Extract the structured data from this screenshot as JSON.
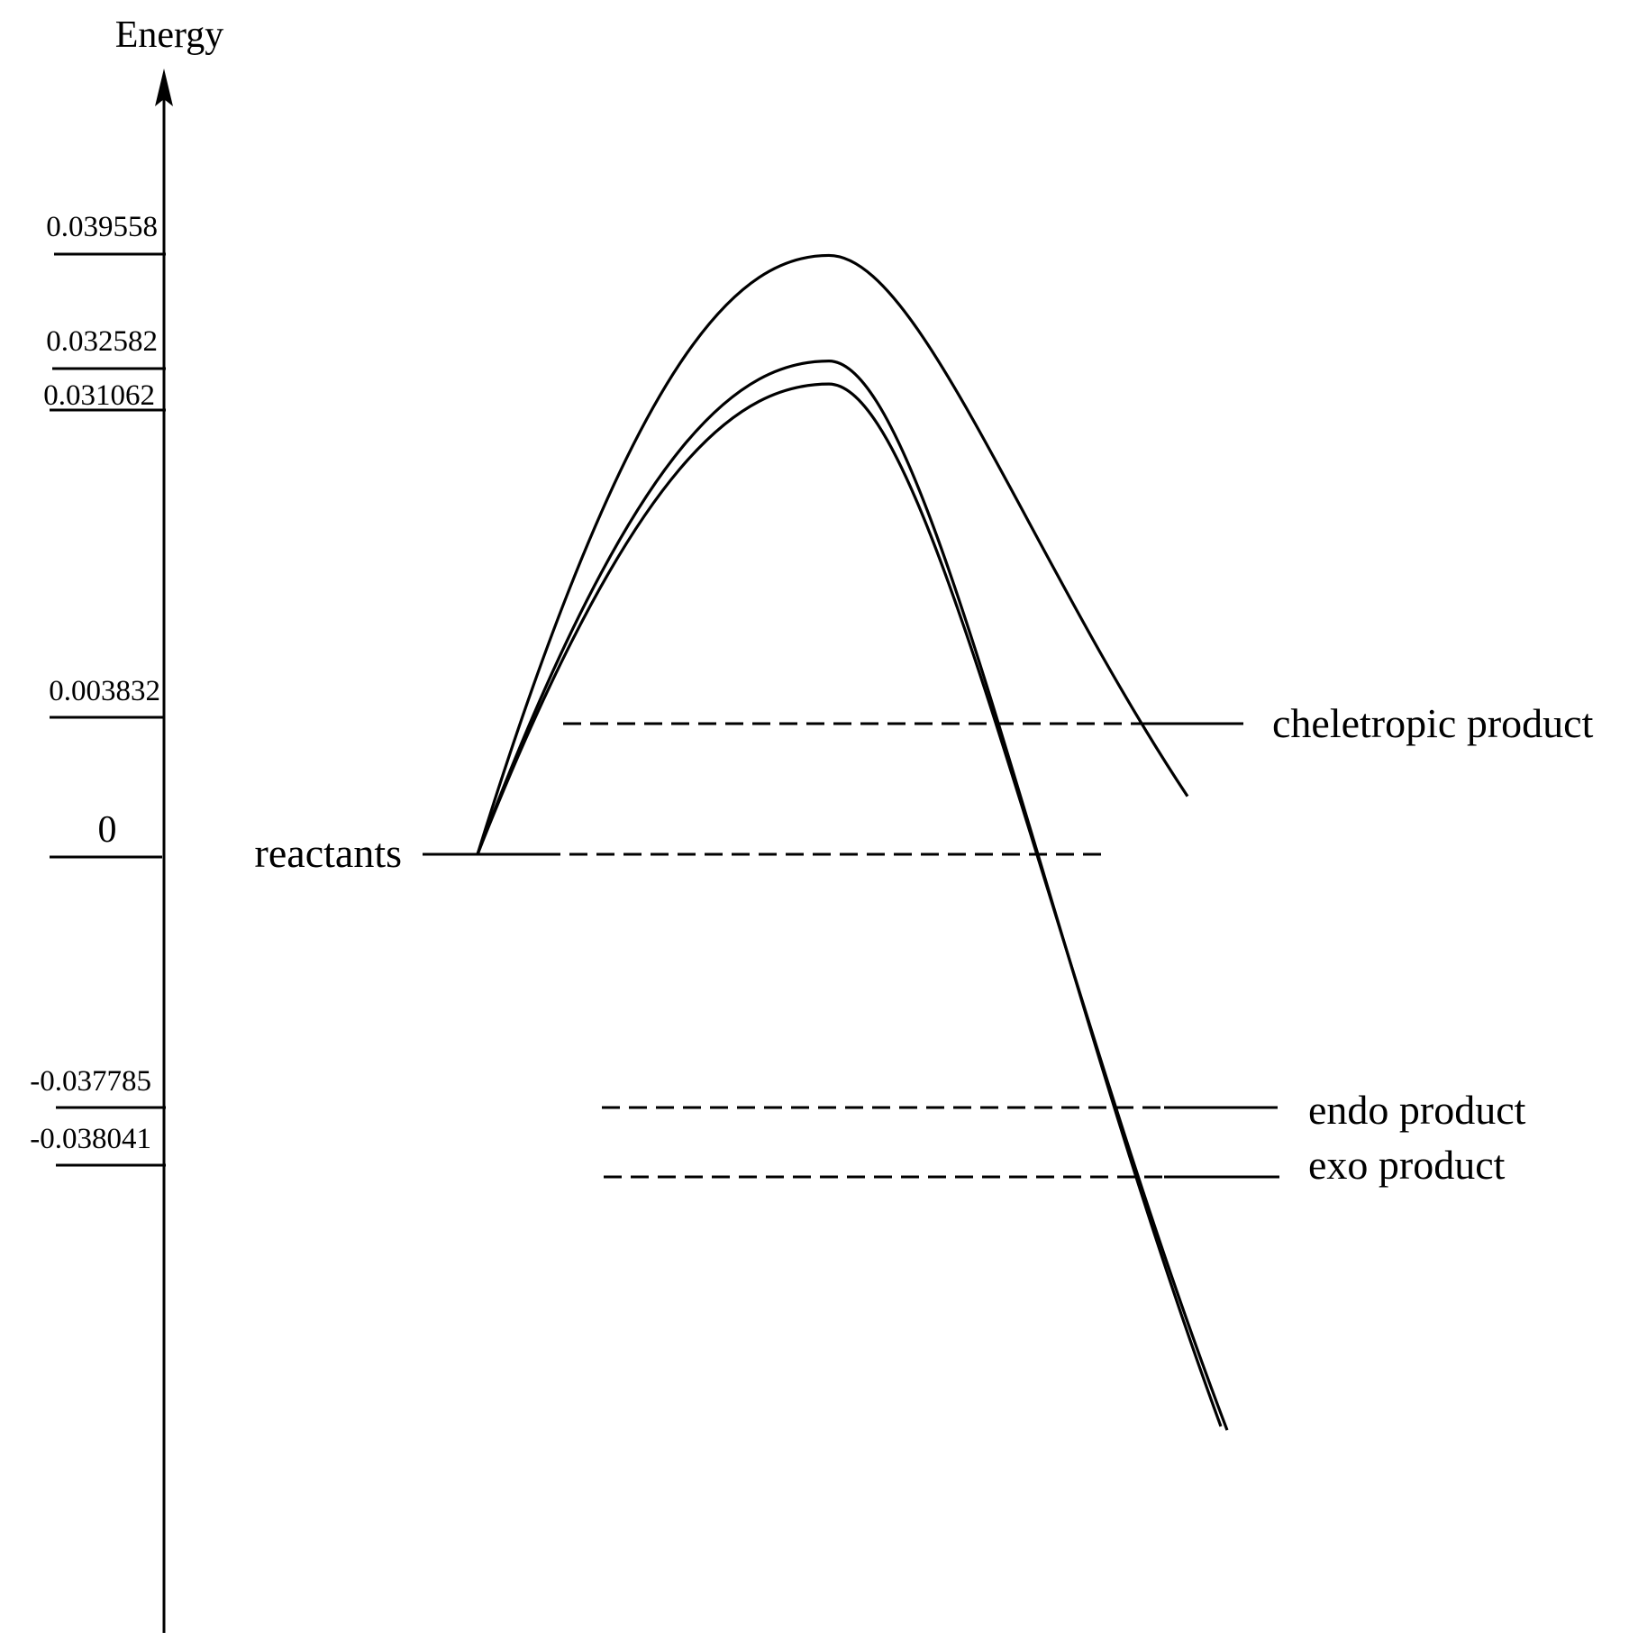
{
  "chart_data": {
    "type": "line",
    "ylabel": "Energy",
    "yticks": [
      {
        "value": 0.039558,
        "label": "0.039558"
      },
      {
        "value": 0.032582,
        "label": "0.032582"
      },
      {
        "value": 0.031062,
        "label": "0.031062"
      },
      {
        "value": 0.003832,
        "label": "0.003832"
      },
      {
        "value": 0,
        "label": "0"
      },
      {
        "value": -0.037785,
        "label": "-0.037785"
      },
      {
        "value": -0.038041,
        "label": "-0.038041"
      }
    ],
    "states": [
      {
        "label": "reactants",
        "energy": 0
      },
      {
        "label": "cheletropic product",
        "energy": 0.003832
      },
      {
        "label": "endo product",
        "energy": -0.037785
      },
      {
        "label": "exo product",
        "energy": -0.038041
      }
    ],
    "series": [
      {
        "points": [
          {
            "state": "reactants",
            "energy": 0
          },
          {
            "state": "transition state",
            "energy": 0.039558
          },
          {
            "state": "cheletropic product",
            "energy": 0.003832
          }
        ]
      },
      {
        "points": [
          {
            "state": "reactants",
            "energy": 0
          },
          {
            "state": "transition state",
            "energy": 0.032582
          },
          {
            "state": "endo product",
            "energy": -0.037785
          }
        ]
      },
      {
        "points": [
          {
            "state": "reactants",
            "energy": 0
          },
          {
            "state": "transition state",
            "energy": 0.031062
          },
          {
            "state": "exo product",
            "energy": -0.038041
          }
        ]
      }
    ],
    "grid": false,
    "legend": "none"
  },
  "colors": {
    "line": "#000000",
    "background": "#ffffff"
  }
}
